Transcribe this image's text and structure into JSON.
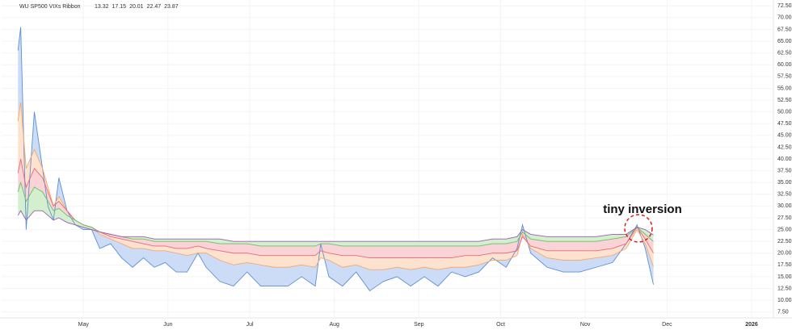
{
  "chart_data": {
    "type": "ribbon",
    "title": "WU SP500 VIXs Ribbon",
    "annotation": "tiny inversion",
    "x": [
      6,
      7,
      9,
      12,
      15,
      17,
      19,
      21,
      24,
      27,
      30,
      33,
      36,
      40,
      44,
      48,
      52,
      56,
      60,
      64,
      68,
      72,
      75,
      80,
      85,
      90,
      95,
      100,
      105,
      110,
      115,
      117,
      120,
      125,
      130,
      135,
      140,
      145,
      150,
      155,
      160,
      165,
      170,
      175,
      180,
      185,
      189,
      191,
      194,
      200,
      206,
      212,
      218,
      224,
      229,
      233,
      236,
      239
    ],
    "series": [
      {
        "color": "#5b8fd6",
        "values": [
          63,
          68,
          25,
          50,
          38,
          30,
          27,
          36,
          29,
          26,
          25,
          25,
          21,
          22,
          19,
          17,
          19,
          17,
          18,
          16,
          16,
          20,
          17,
          14,
          13,
          16,
          13,
          13,
          13,
          15,
          13,
          22,
          15,
          13,
          16,
          12,
          14,
          15,
          13,
          15,
          13,
          16,
          15,
          16,
          19,
          17,
          21,
          26,
          20,
          17,
          16,
          16,
          17,
          18,
          22,
          26,
          21,
          13.32
        ]
      },
      {
        "color": "#f5a86a",
        "values": [
          48,
          52,
          38,
          42,
          38,
          34,
          30,
          32,
          29,
          27,
          26,
          25.5,
          24,
          23,
          22,
          21,
          21,
          20.5,
          20.5,
          20,
          19.5,
          20,
          20,
          18.5,
          17.5,
          18,
          17.5,
          17,
          17,
          17.5,
          17,
          19,
          18.5,
          17,
          17.5,
          16.5,
          16.5,
          17,
          16.5,
          17,
          16.5,
          17,
          17,
          17.5,
          18.5,
          18.5,
          19.5,
          24,
          21,
          19,
          18.5,
          18.5,
          19,
          19.5,
          21,
          25,
          22,
          17.15
        ]
      },
      {
        "color": "#e8697a",
        "values": [
          37,
          40,
          34,
          38,
          36,
          33,
          30,
          31,
          29,
          27,
          26,
          25.5,
          24.5,
          23.5,
          23,
          22.5,
          22,
          21.5,
          21.5,
          21,
          21,
          21.5,
          21,
          20.5,
          20,
          20,
          19.5,
          19.5,
          19.5,
          19.5,
          19.5,
          20.5,
          20,
          19.5,
          19.5,
          19,
          19,
          19,
          19,
          19,
          19,
          19,
          19.5,
          19.5,
          20,
          20,
          20.5,
          23.5,
          21.5,
          20.5,
          20.5,
          20.5,
          20.5,
          21,
          22,
          25.5,
          23,
          20.01
        ]
      },
      {
        "color": "#6cbf6a",
        "values": [
          33,
          35,
          31,
          34,
          33,
          31,
          29,
          29.5,
          28,
          27,
          26,
          25.5,
          24.5,
          24,
          23.5,
          23,
          23,
          22.5,
          22.5,
          22.5,
          22.5,
          22.5,
          22.5,
          22,
          22,
          22,
          21.5,
          21.5,
          21.5,
          21.5,
          21.5,
          22,
          22,
          21.5,
          21.5,
          21.5,
          21.5,
          21.5,
          21.5,
          21.5,
          21.5,
          21.5,
          21.5,
          21.5,
          22,
          22,
          22.5,
          24.5,
          23,
          22.5,
          22.5,
          22.5,
          22.5,
          23,
          23.5,
          25.5,
          24,
          22.47
        ]
      },
      {
        "color": "#9c5cb8",
        "values": [
          28,
          29,
          27,
          29,
          29,
          28,
          27,
          27.5,
          26.5,
          26,
          25.5,
          25,
          24.5,
          24,
          23.5,
          23.5,
          23.5,
          23,
          23,
          23,
          23,
          23,
          23,
          23,
          22.5,
          22.5,
          22.5,
          22.5,
          22.5,
          22.5,
          22.5,
          22.5,
          22.5,
          22.5,
          22.5,
          22.5,
          22.5,
          22.5,
          22.5,
          22.5,
          22.5,
          22.5,
          22.5,
          22.5,
          23,
          23,
          23.5,
          25,
          24,
          23.5,
          23.5,
          23.5,
          23.5,
          24,
          24,
          25.5,
          25,
          23.87
        ]
      }
    ],
    "fill_colors": [
      "#cddcf6",
      "#fde3cf",
      "#f9d3d6",
      "#d3efcd"
    ],
    "xlim": [
      0,
      283
    ],
    "xticks": [
      {
        "value": 30,
        "label": "May"
      },
      {
        "value": 61,
        "label": "Jun"
      },
      {
        "value": 91,
        "label": "Jul"
      },
      {
        "value": 122,
        "label": "Aug"
      },
      {
        "value": 153,
        "label": "Sep"
      },
      {
        "value": 183,
        "label": "Oct"
      },
      {
        "value": 214,
        "label": "Nov"
      },
      {
        "value": 244,
        "label": "Dec"
      },
      {
        "value": 275,
        "label": "2026"
      }
    ],
    "ylim": [
      6.25,
      73.75
    ],
    "yticks": [
      {
        "value": 7.5,
        "label": "7.50"
      },
      {
        "value": 10,
        "label": "10.00"
      },
      {
        "value": 12.5,
        "label": "12.50"
      },
      {
        "value": 15,
        "label": "15.00"
      },
      {
        "value": 17.5,
        "label": "17.50"
      },
      {
        "value": 20,
        "label": "20.00"
      },
      {
        "value": 22.5,
        "label": "22.50"
      },
      {
        "value": 25,
        "label": "25.00"
      },
      {
        "value": 27.5,
        "label": "27.50"
      },
      {
        "value": 30,
        "label": "30.00"
      },
      {
        "value": 32.5,
        "label": "32.50"
      },
      {
        "value": 35,
        "label": "35.00"
      },
      {
        "value": 37.5,
        "label": "37.50"
      },
      {
        "value": 40,
        "label": "40.00"
      },
      {
        "value": 42.5,
        "label": "42.50"
      },
      {
        "value": 45,
        "label": "45.00"
      },
      {
        "value": 47.5,
        "label": "47.50"
      },
      {
        "value": 50,
        "label": "50.00"
      },
      {
        "value": 52.5,
        "label": "52.50"
      },
      {
        "value": 55,
        "label": "55.00"
      },
      {
        "value": 57.5,
        "label": "57.50"
      },
      {
        "value": 60,
        "label": "60.00"
      },
      {
        "value": 62.5,
        "label": "62.50"
      },
      {
        "value": 65,
        "label": "65.00"
      },
      {
        "value": 67.5,
        "label": "67.50"
      },
      {
        "value": 70,
        "label": "70.00"
      },
      {
        "value": 72.5,
        "label": "72.50"
      }
    ],
    "grid": true
  }
}
